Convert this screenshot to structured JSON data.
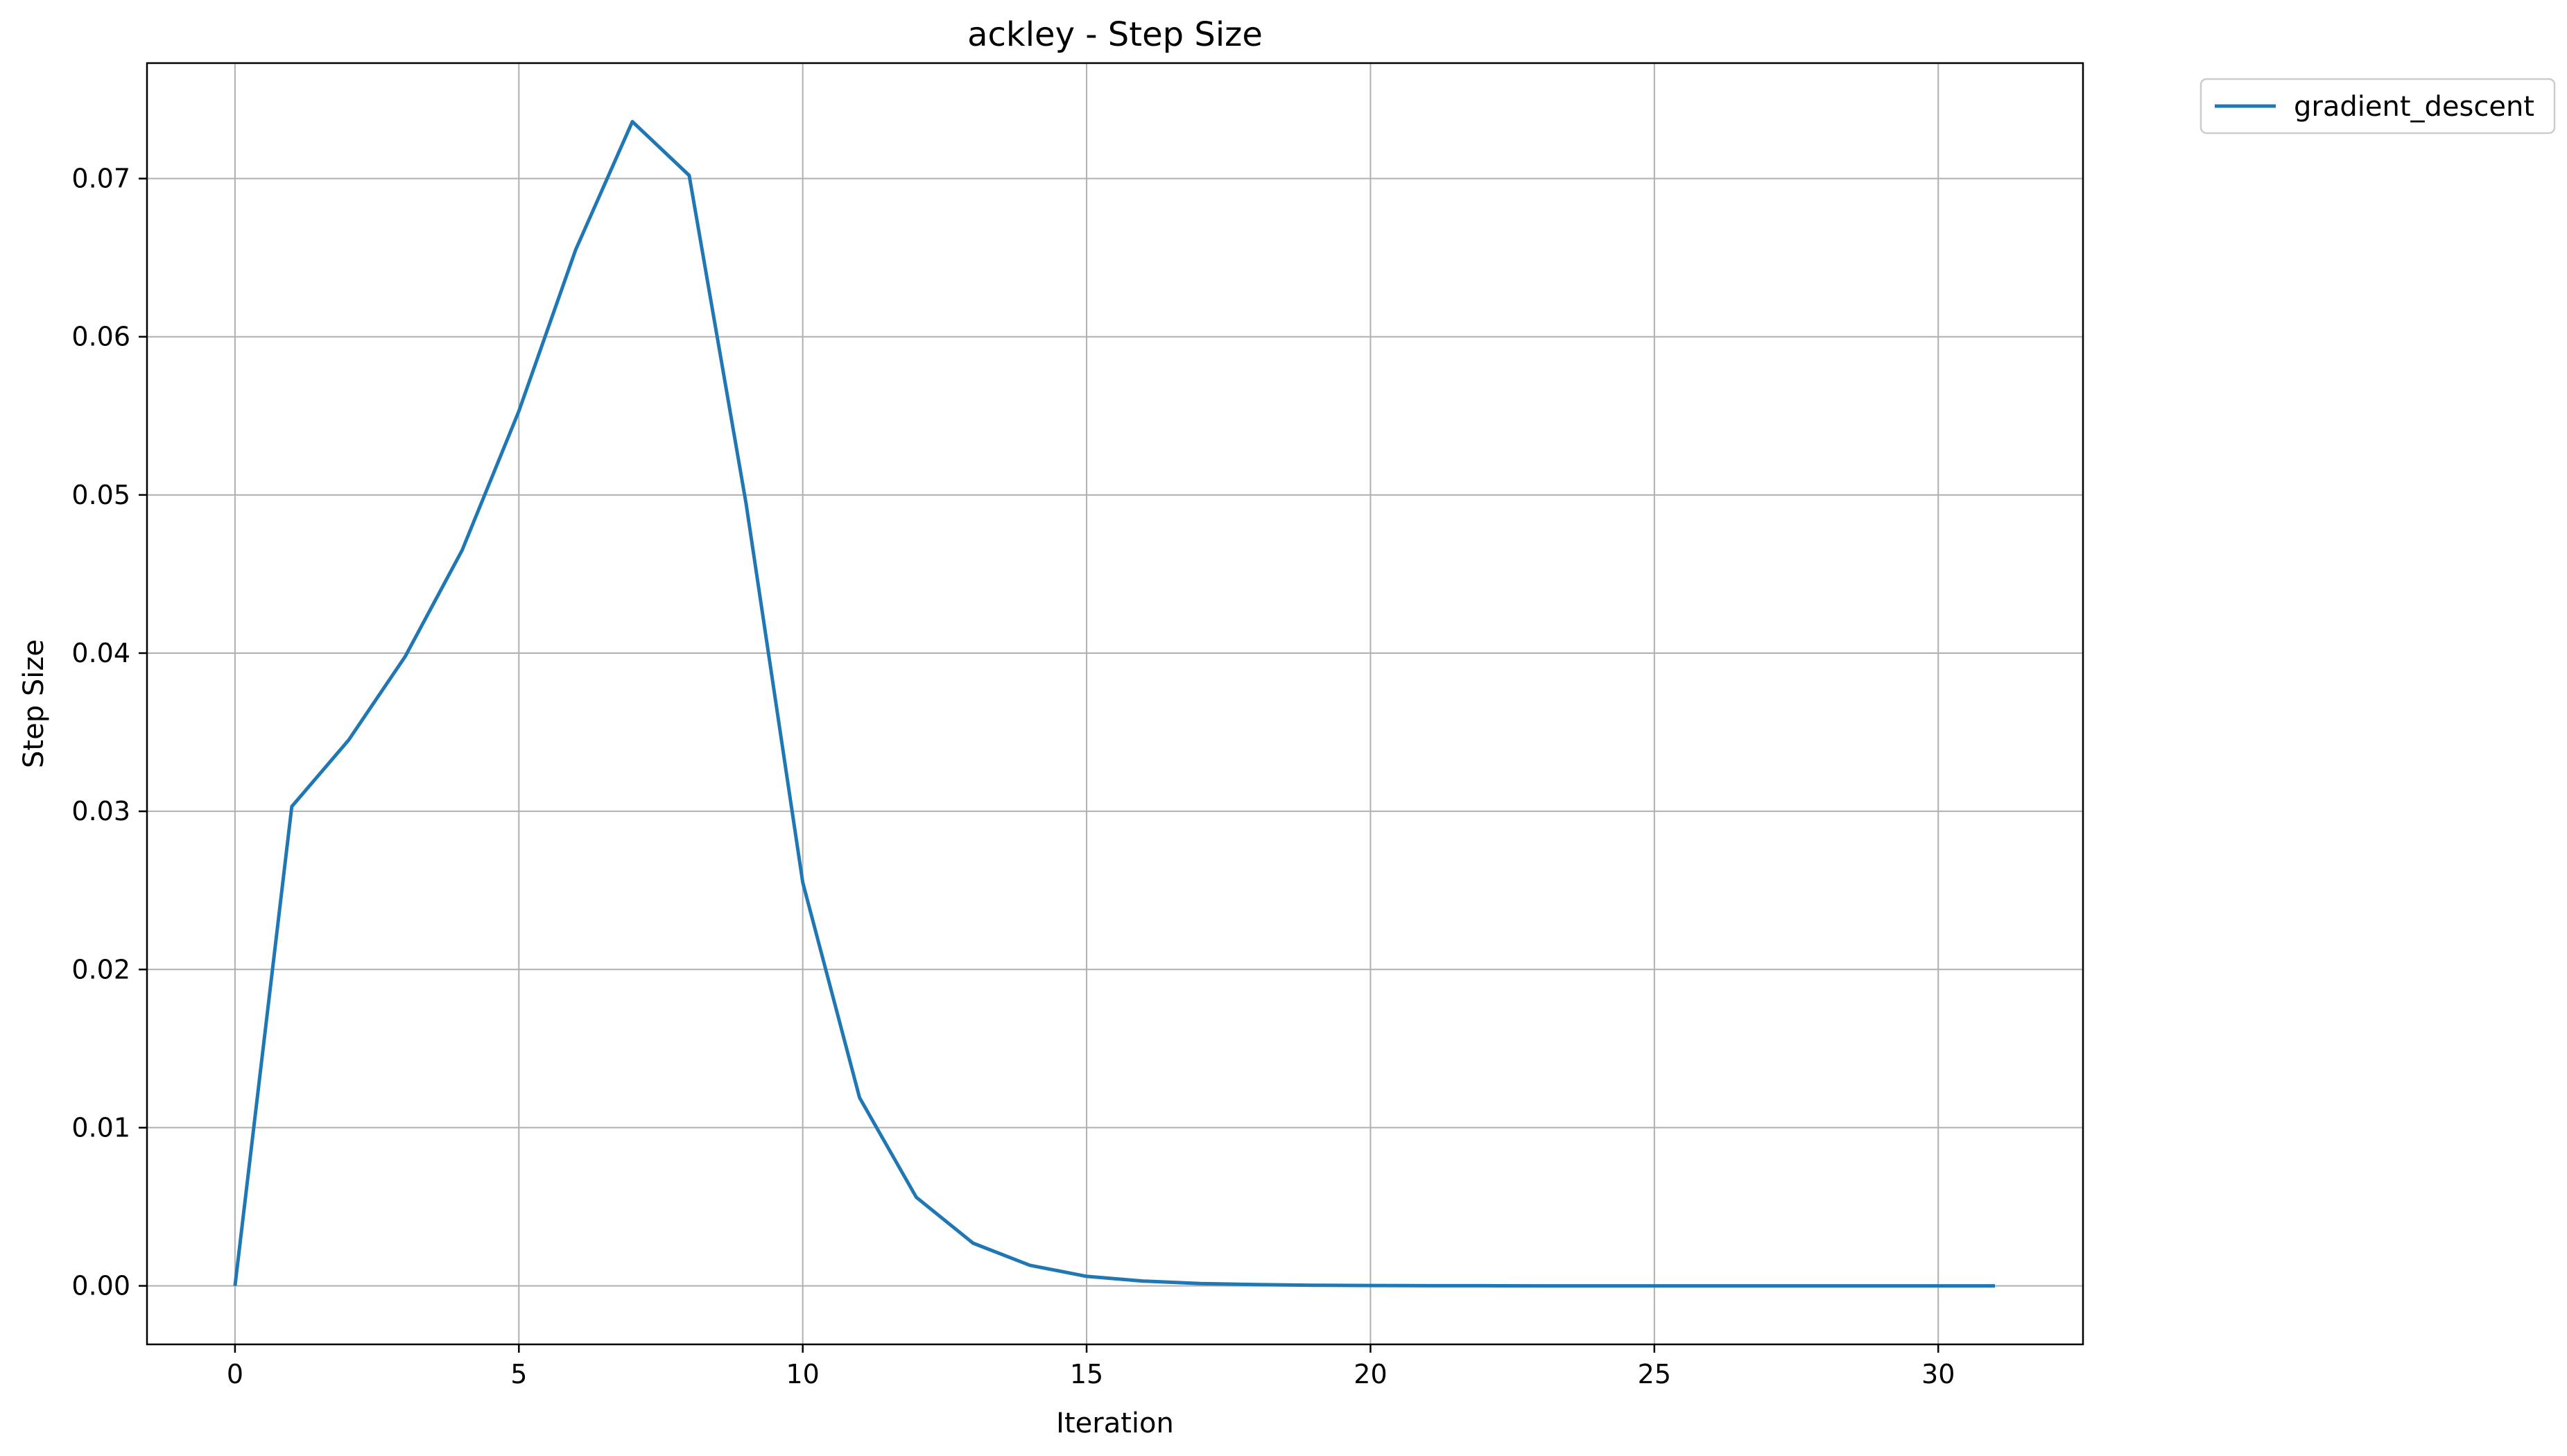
{
  "chart_data": {
    "type": "line",
    "title": "ackley - Step Size",
    "xlabel": "Iteration",
    "ylabel": "Step Size",
    "xlim": [
      -1.55,
      32.55
    ],
    "ylim": [
      -0.0037,
      0.0773
    ],
    "xticks": [
      0,
      5,
      10,
      15,
      20,
      25,
      30
    ],
    "yticks": [
      0.0,
      0.01,
      0.02,
      0.03,
      0.04,
      0.05,
      0.06,
      0.07
    ],
    "ytick_labels": [
      "0.00",
      "0.01",
      "0.02",
      "0.03",
      "0.04",
      "0.05",
      "0.06",
      "0.07"
    ],
    "grid": true,
    "legend_position": "outside-top-right",
    "series": [
      {
        "name": "gradient_descent",
        "color": "#1f77b4",
        "x": [
          0,
          1,
          2,
          3,
          4,
          5,
          6,
          7,
          8,
          9,
          10,
          11,
          12,
          13,
          14,
          15,
          16,
          17,
          18,
          19,
          20,
          21,
          22,
          23,
          24,
          25,
          26,
          27,
          28,
          29,
          30,
          31
        ],
        "y": [
          0.0,
          0.0303,
          0.0345,
          0.0398,
          0.0465,
          0.0553,
          0.0655,
          0.0736,
          0.0702,
          0.0495,
          0.0255,
          0.0119,
          0.0056,
          0.0027,
          0.0013,
          0.0006,
          0.0003,
          0.00015,
          8e-05,
          4e-05,
          2e-05,
          1e-05,
          1e-05,
          0.0,
          0.0,
          0.0,
          0.0,
          0.0,
          0.0,
          0.0,
          0.0,
          0.0
        ]
      }
    ]
  }
}
